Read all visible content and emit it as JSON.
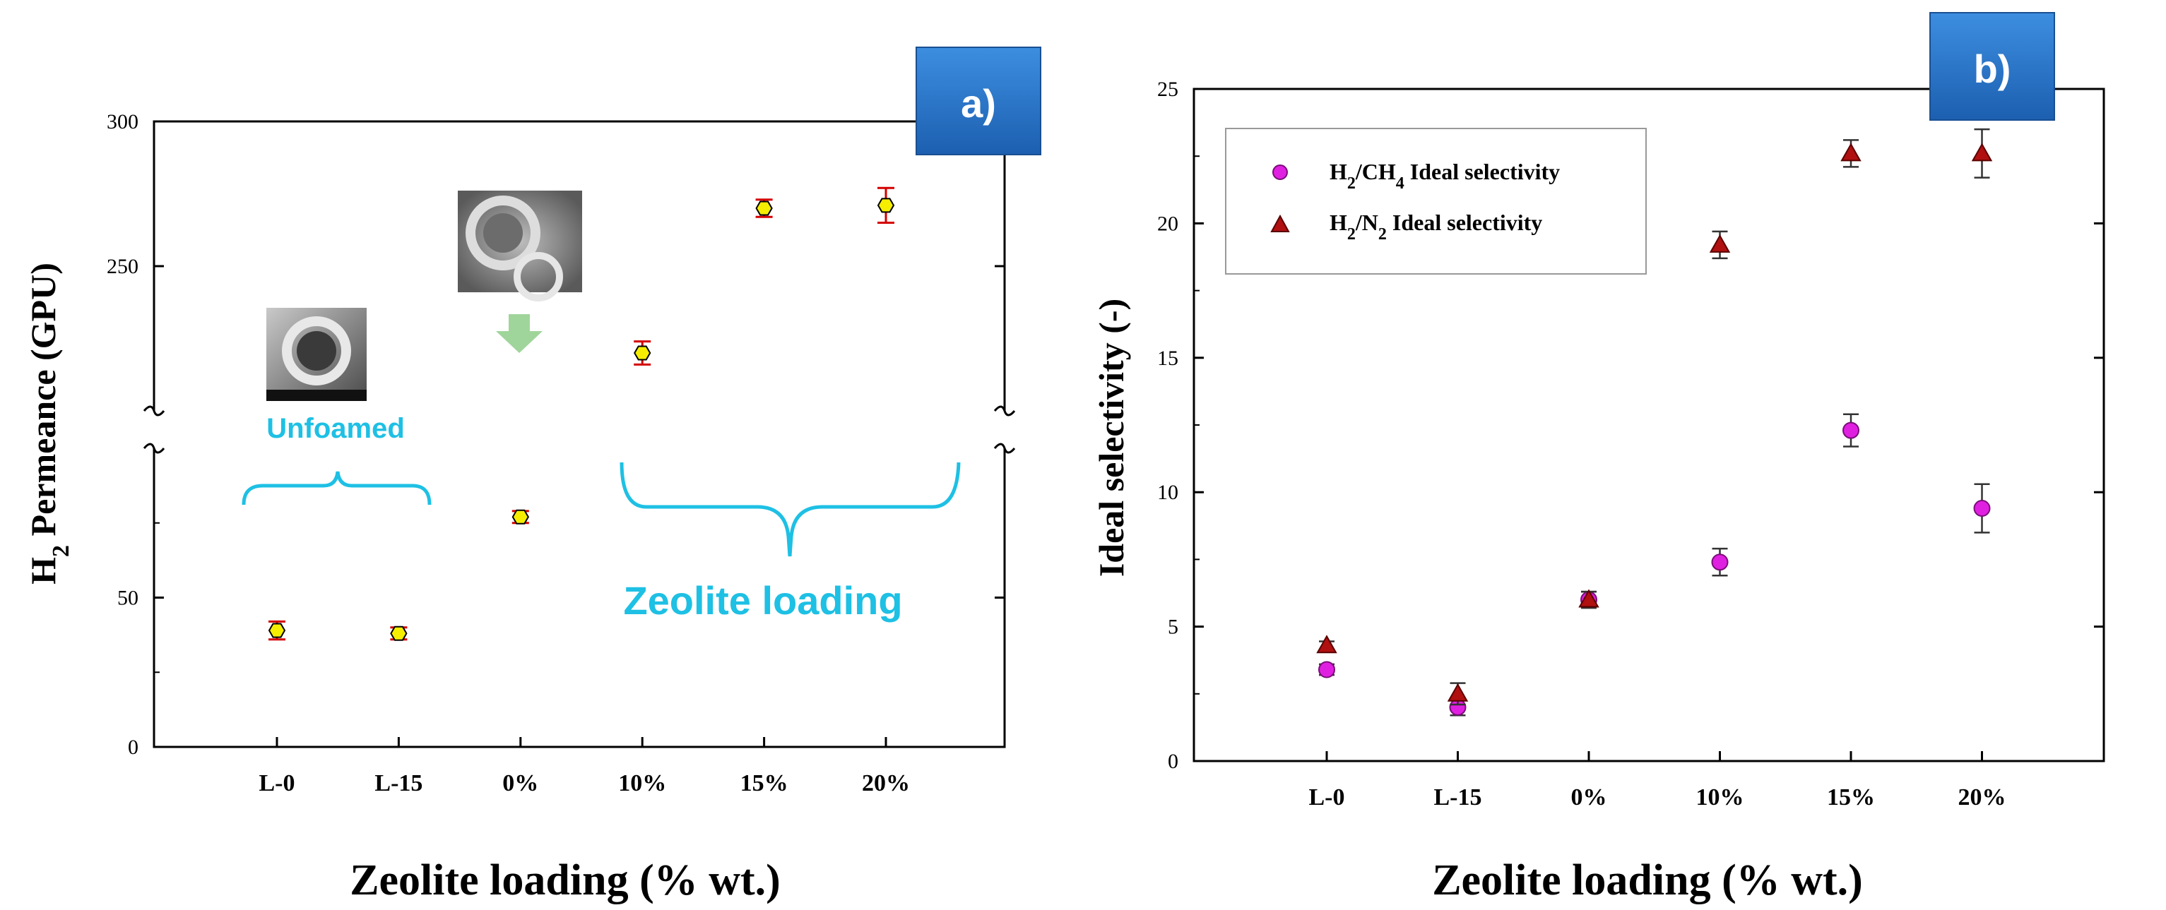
{
  "chart_data": [
    {
      "panel": "a)",
      "type": "scatter",
      "title": "",
      "xlabel": "Zeolite loading (% wt.)",
      "ylabel_main": "H",
      "ylabel_sub": "2",
      "ylabel_rest": " Permeance (GPU)",
      "categories": [
        "L-0",
        "L-15",
        "0%",
        "10%",
        "15%",
        "20%"
      ],
      "ylim": [
        0,
        300
      ],
      "axis_break": true,
      "yticks": [
        0,
        50,
        250,
        300
      ],
      "series": [
        {
          "name": "H2 Permeance",
          "color": "#f5ee00",
          "edge": "#000000",
          "errorbar_color": "#d40000",
          "values": [
            39,
            38,
            77,
            220,
            270,
            271
          ],
          "errors": [
            3,
            2,
            2,
            4,
            3,
            6
          ]
        }
      ],
      "annotations": {
        "unfoamed": "Unfoamed",
        "zeolite_loading": "Zeolite loading"
      }
    },
    {
      "panel": "b)",
      "type": "scatter",
      "title": "",
      "xlabel": "Zeolite loading (% wt.)",
      "ylabel": "Ideal selectivity (-)",
      "categories": [
        "L-0",
        "L-15",
        "0%",
        "10%",
        "15%",
        "20%"
      ],
      "ylim": [
        0,
        25
      ],
      "yticks": [
        0,
        5,
        10,
        15,
        20,
        25
      ],
      "legend_position": "top-left",
      "series": [
        {
          "name": "H2/CH4 Ideal selectivity",
          "legend_main": "H",
          "legend_sub1": "2",
          "legend_mid": "/CH",
          "legend_sub2": "4",
          "legend_rest": " Ideal selectivity",
          "marker": "circle",
          "color": "#e020e0",
          "values": [
            3.4,
            2.0,
            6.0,
            7.4,
            12.3,
            9.4
          ],
          "errors": [
            0.2,
            0.3,
            0.3,
            0.5,
            0.6,
            0.9
          ]
        },
        {
          "name": "H2/N2 Ideal selectivity",
          "legend_main": "H",
          "legend_sub1": "2",
          "legend_mid": "/N",
          "legend_sub2": "2",
          "legend_rest": " Ideal selectivity",
          "marker": "triangle",
          "color": "#b01010",
          "values": [
            4.3,
            2.5,
            6.0,
            19.2,
            22.6,
            22.6
          ],
          "errors": [
            0.15,
            0.4,
            0.3,
            0.5,
            0.5,
            0.9
          ]
        }
      ]
    }
  ]
}
